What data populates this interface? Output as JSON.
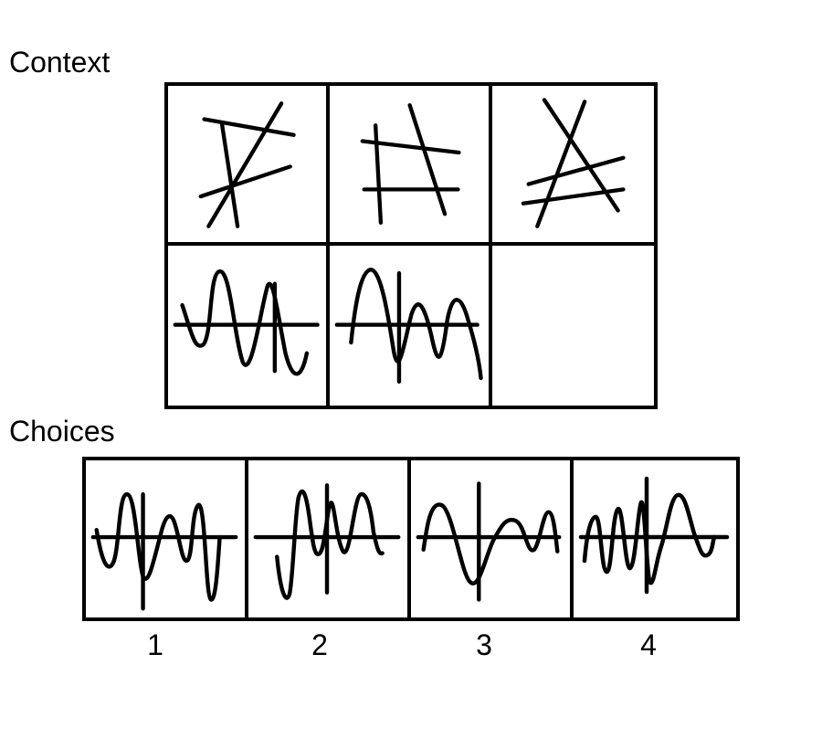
{
  "context": {
    "heading": "Context",
    "cells": [
      {
        "figure": "crossing-lines"
      },
      {
        "figure": "crossing-lines"
      },
      {
        "figure": "crossing-lines"
      },
      {
        "figure": "wave-with-axis"
      },
      {
        "figure": "wave-with-axis"
      },
      {
        "figure": "empty"
      }
    ]
  },
  "choices": {
    "heading": "Choices",
    "options": [
      {
        "label": "1",
        "figure": "wave-with-axis"
      },
      {
        "label": "2",
        "figure": "wave-with-axis"
      },
      {
        "label": "3",
        "figure": "wave-with-axis"
      },
      {
        "label": "4",
        "figure": "wave-with-axis"
      }
    ]
  }
}
